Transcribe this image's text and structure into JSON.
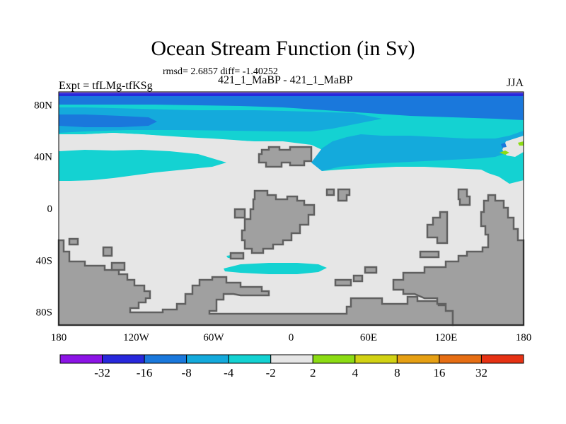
{
  "header": {
    "title": "Ocean Stream Function (in Sv)",
    "stats": "rmsd= 2.6857 diff= -1.40252",
    "subtitle": "421_1_MaBP - 421_1_MaBP",
    "expt": "Expt = tfLMg-tfKSg",
    "season": "JJA"
  },
  "axes": {
    "x_ticks": [
      "180",
      "120W",
      "60W",
      "0",
      "60E",
      "120E",
      "180"
    ],
    "y_ticks": [
      "80N",
      "40N",
      "0",
      "40S",
      "80S"
    ],
    "x_range": [
      -180,
      180
    ],
    "y_range": [
      -90,
      90
    ]
  },
  "colorbar": {
    "labels": [
      "-32",
      "-16",
      "-8",
      "-4",
      "-2",
      "2",
      "4",
      "8",
      "16",
      "32"
    ],
    "colors": [
      "#8c14e6",
      "#2828dc",
      "#1a78dc",
      "#14aadc",
      "#14d2d2",
      "#e6e6e6",
      "#8cdc14",
      "#d2d214",
      "#e6a014",
      "#e66e14",
      "#e63214"
    ]
  },
  "map_colors": {
    "land": "#a0a0a0",
    "land_edge": "#606060",
    "neutral": "#e6e6e6",
    "cyan": "#14d2d2",
    "light_blue": "#14aadc",
    "mid_blue": "#1a78dc",
    "deep_blue": "#2828dc",
    "violet": "#8c6ee6",
    "green": "#8cdc14"
  }
}
